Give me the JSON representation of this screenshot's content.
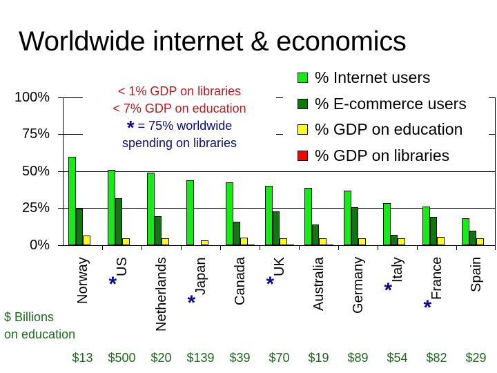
{
  "title": "Worldwide internet & economics",
  "annotation": {
    "line1": "< 1% GDP on libraries",
    "line2": "< 7% GDP on education",
    "star_symbol": "*",
    "line3": " = 75% worldwide",
    "line4": "spending on libraries"
  },
  "education_label": {
    "line1": "$ Billions",
    "line2": "on education"
  },
  "colors": {
    "internet": "#11ee11",
    "ecommerce": "#0b7a0b",
    "education": "#ffff11",
    "libraries": "#ff0000",
    "annotation_red": "#c01820",
    "annotation_blue": "#0a0a90",
    "dollar_green": "#1a6b1a"
  },
  "chart_data": {
    "type": "bar",
    "title": "Worldwide internet & economics",
    "xlabel": "",
    "ylabel": "",
    "ylim": [
      0,
      100
    ],
    "yticks": [
      "0%",
      "25%",
      "50%",
      "75%",
      "100%"
    ],
    "grid": true,
    "legend_position": "upper right",
    "categories": [
      "Norway",
      "US",
      "Netherlands",
      "Japan",
      "Canada",
      "UK",
      "Australia",
      "Germany",
      "Italy",
      "France",
      "Spain"
    ],
    "starred": [
      false,
      true,
      false,
      true,
      false,
      true,
      false,
      false,
      true,
      true,
      false
    ],
    "series": [
      {
        "name": "% Internet users",
        "values": [
          60,
          51,
          49,
          44,
          42.5,
          40,
          39,
          37,
          28.5,
          26,
          18
        ]
      },
      {
        "name": "% E-commerce users",
        "values": [
          25,
          32,
          19.5,
          0,
          16,
          23,
          14,
          25.5,
          7,
          19,
          10
        ]
      },
      {
        "name": "% GDP on education",
        "values": [
          6.5,
          4.8,
          4.8,
          3.4,
          5.2,
          4.8,
          4.8,
          4.7,
          4.7,
          5.5,
          4.6
        ]
      },
      {
        "name": "% GDP on libraries",
        "values": [
          0,
          0,
          0,
          0,
          0.5,
          0.5,
          0.5,
          0,
          0,
          0,
          0
        ]
      }
    ],
    "education_spending_billions": [
      "$13",
      "$500",
      "$20",
      "$139",
      "$39",
      "$70",
      "$19",
      "$89",
      "$54",
      "$82",
      "$29"
    ]
  }
}
